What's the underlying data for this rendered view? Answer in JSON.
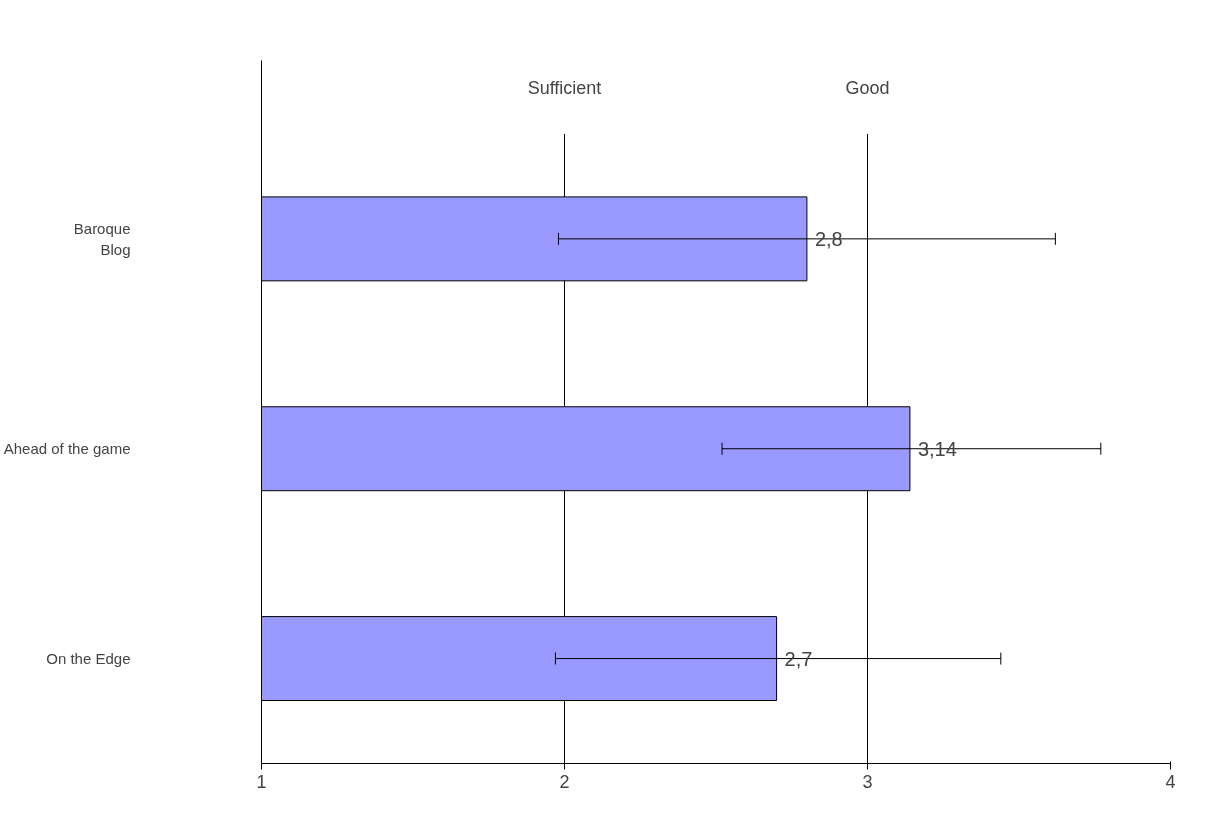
{
  "chart_data": {
    "type": "bar",
    "orientation": "horizontal",
    "categories": [
      "Baroque\nBlog",
      "Ahead of the game",
      "On the Edge"
    ],
    "values": [
      2.8,
      3.14,
      2.7
    ],
    "value_labels": [
      "2,8",
      "3,14",
      "2,7"
    ],
    "errors": [
      [
        1.98,
        3.62
      ],
      [
        2.52,
        3.77
      ],
      [
        1.97,
        3.44
      ]
    ],
    "color": "#9999ff",
    "xlim": [
      1,
      4
    ],
    "xticks": [
      1,
      2,
      3,
      4
    ],
    "ref_lines": [
      {
        "axis": "x",
        "value": 2,
        "label": "Sufficient"
      },
      {
        "axis": "x",
        "value": 3,
        "label": "Good"
      }
    ]
  }
}
